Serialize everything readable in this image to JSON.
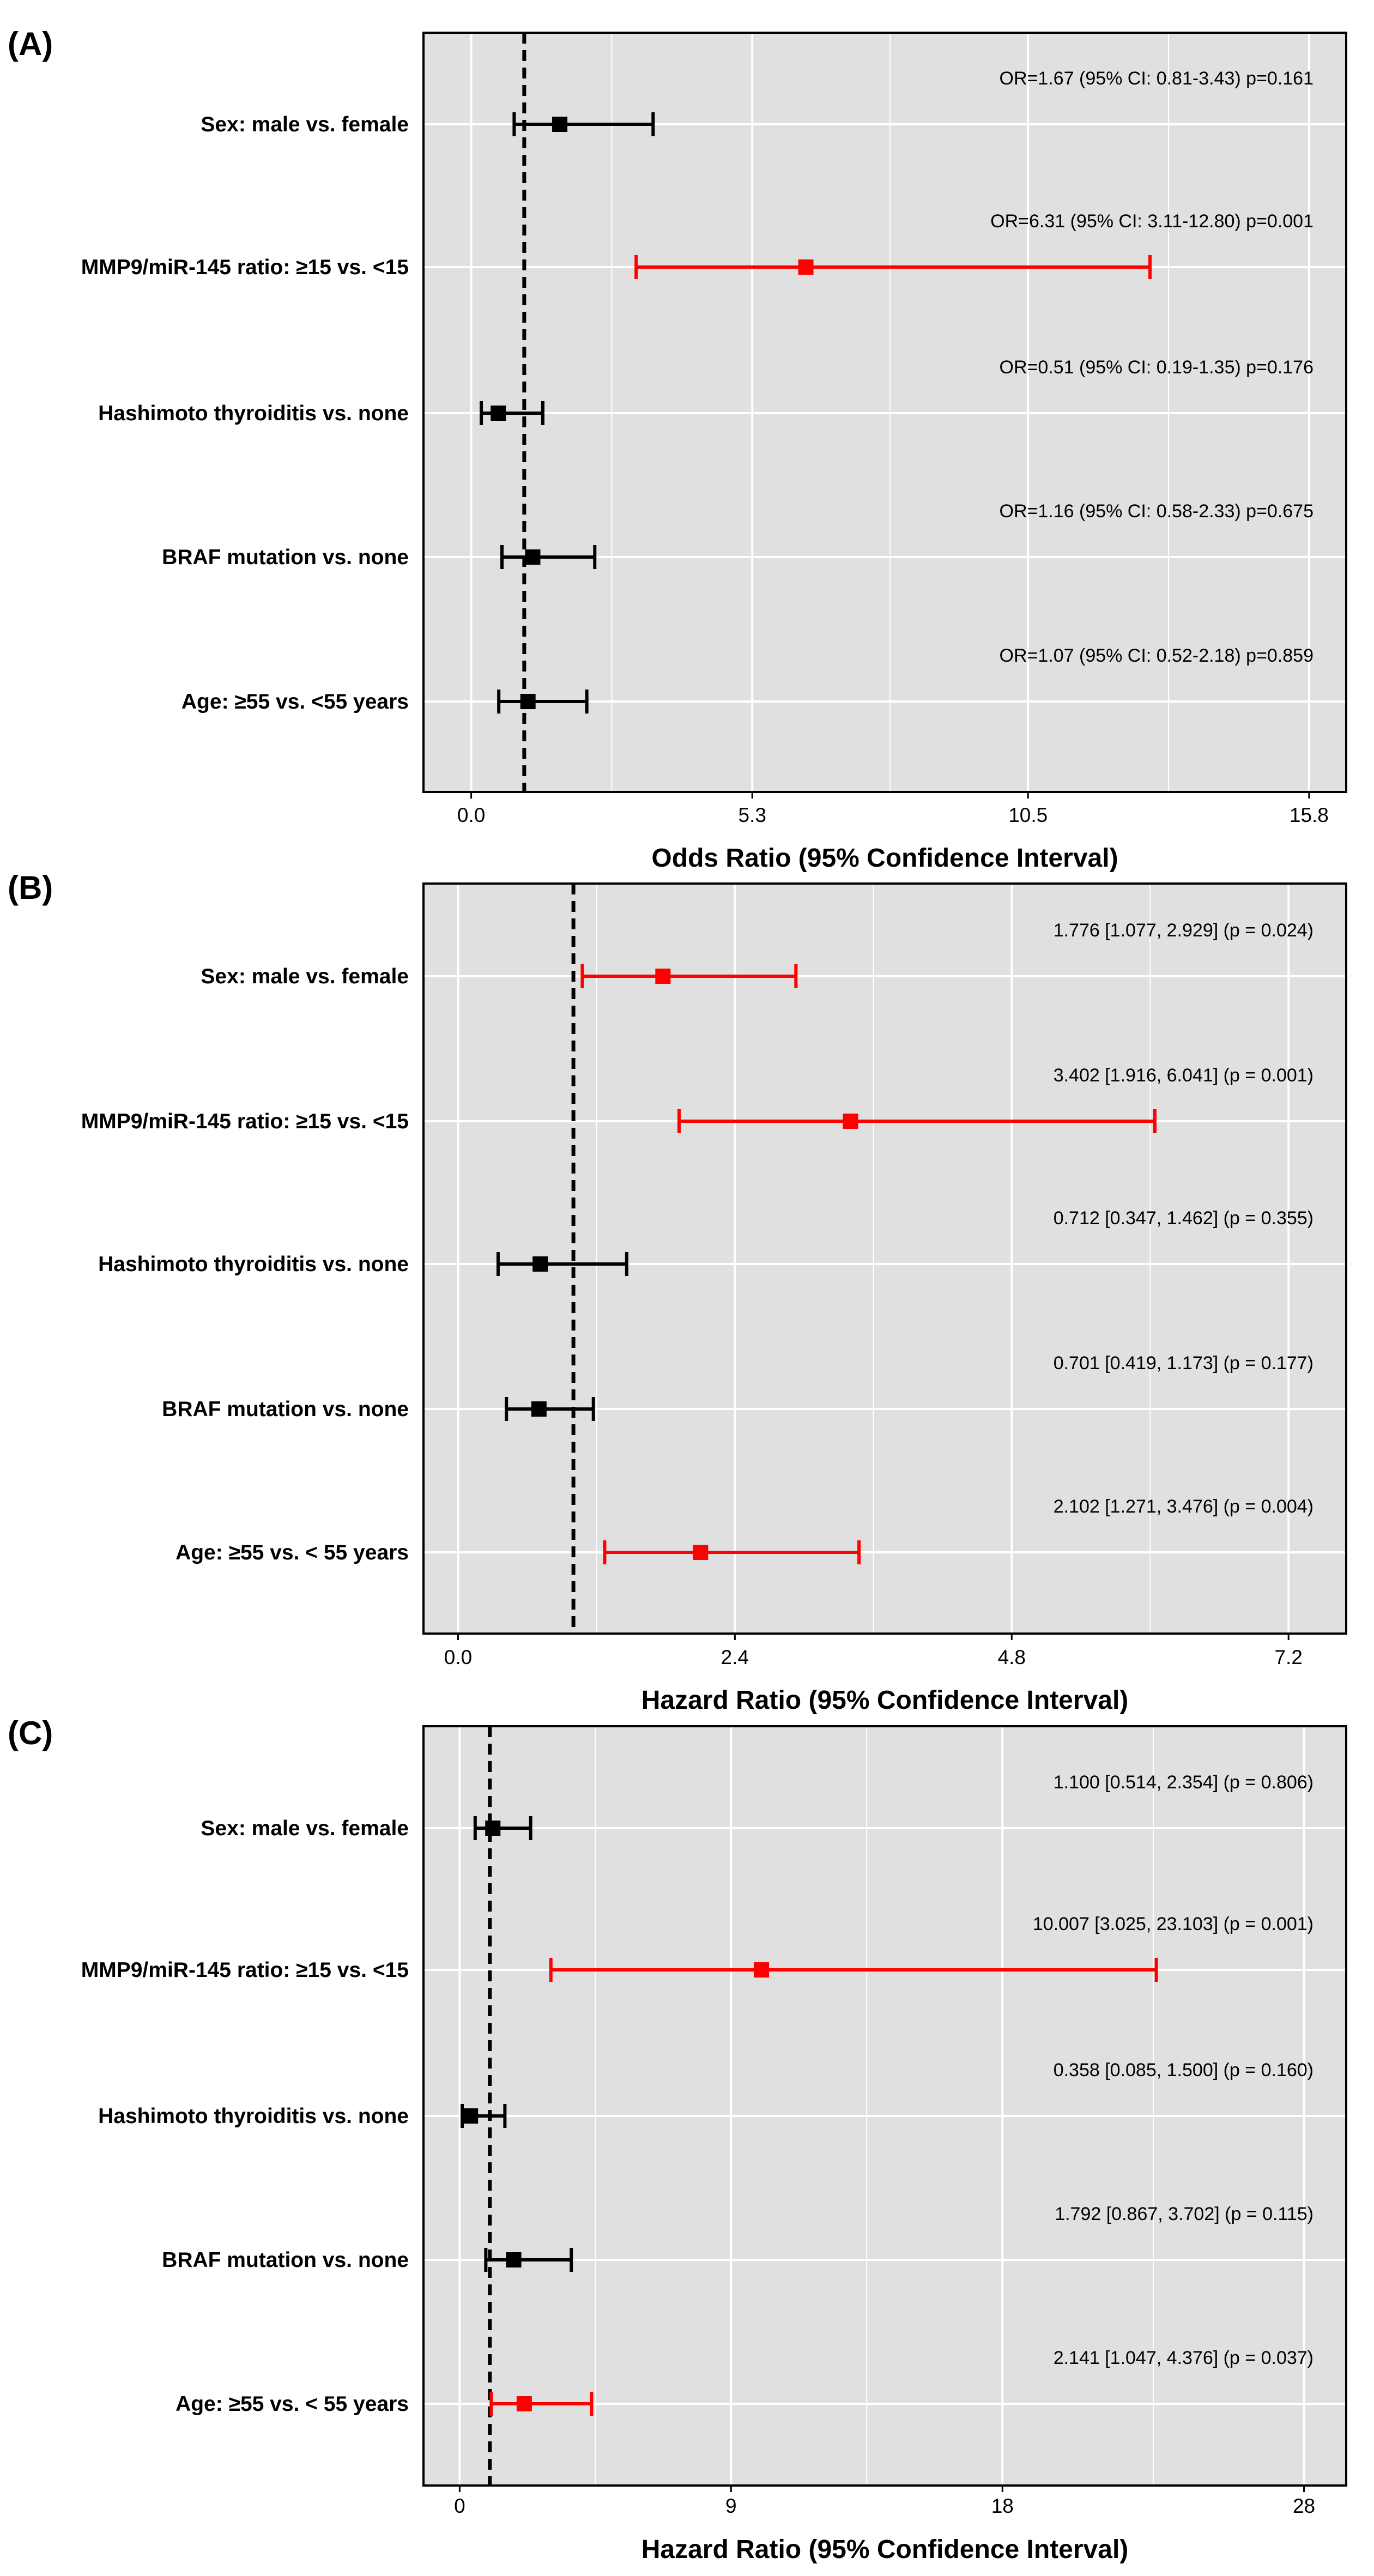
{
  "chart_data": [
    {
      "type": "forest",
      "panel": "(A)",
      "xlabel": "Odds Ratio (95% Confidence Interval)",
      "xlim": [
        -0.9,
        16.5
      ],
      "ticks": [
        0.0,
        5.3,
        10.5,
        15.8
      ],
      "tick_labels": [
        "0.0",
        "5.3",
        "10.5",
        "15.8"
      ],
      "reference_line": 1,
      "colors": {
        "significant": "#ff0000",
        "nonsignificant": "#000000",
        "background": "#e0e0e0",
        "grid": "#ffffff"
      },
      "rows": [
        {
          "label": "Sex: male vs. female",
          "estimate": 1.67,
          "lower": 0.81,
          "upper": 3.43,
          "significant": false,
          "annotation": "OR=1.67 (95% CI: 0.81-3.43) p=0.161"
        },
        {
          "label": "MMP9/miR-145 ratio: ≥15 vs. <15",
          "estimate": 6.31,
          "lower": 3.11,
          "upper": 12.8,
          "significant": true,
          "annotation": "OR=6.31 (95% CI: 3.11-12.80) p=0.001"
        },
        {
          "label": "Hashimoto thyroiditis vs. none",
          "estimate": 0.51,
          "lower": 0.19,
          "upper": 1.35,
          "significant": false,
          "annotation": "OR=0.51 (95% CI: 0.19-1.35) p=0.176"
        },
        {
          "label": "BRAF mutation vs. none",
          "estimate": 1.16,
          "lower": 0.58,
          "upper": 2.33,
          "significant": false,
          "annotation": "OR=1.16 (95% CI: 0.58-2.33) p=0.675"
        },
        {
          "label": "Age: ≥55 vs. <55 years",
          "estimate": 1.07,
          "lower": 0.52,
          "upper": 2.18,
          "significant": false,
          "annotation": "OR=1.07 (95% CI: 0.52-2.18) p=0.859"
        }
      ]
    },
    {
      "type": "forest",
      "panel": "(B)",
      "xlabel": "Hazard Ratio (95% Confidence Interval)",
      "xlim": [
        -0.3,
        7.7
      ],
      "ticks": [
        0.0,
        2.4,
        4.8,
        7.2
      ],
      "tick_labels": [
        "0.0",
        "2.4",
        "4.8",
        "7.2"
      ],
      "reference_line": 1,
      "colors": {
        "significant": "#ff0000",
        "nonsignificant": "#000000",
        "background": "#e0e0e0",
        "grid": "#ffffff"
      },
      "rows": [
        {
          "label": "Sex: male vs. female",
          "estimate": 1.776,
          "lower": 1.077,
          "upper": 2.929,
          "significant": true,
          "annotation": "1.776 [1.077, 2.929] (p = 0.024)"
        },
        {
          "label": "MMP9/miR-145 ratio: ≥15 vs. <15",
          "estimate": 3.402,
          "lower": 1.916,
          "upper": 6.041,
          "significant": true,
          "annotation": "3.402 [1.916, 6.041] (p = 0.001)"
        },
        {
          "label": "Hashimoto thyroiditis vs. none",
          "estimate": 0.712,
          "lower": 0.347,
          "upper": 1.462,
          "significant": false,
          "annotation": "0.712 [0.347, 1.462] (p = 0.355)"
        },
        {
          "label": "BRAF mutation vs. none",
          "estimate": 0.701,
          "lower": 0.419,
          "upper": 1.173,
          "significant": false,
          "annotation": "0.701 [0.419, 1.173] (p = 0.177)"
        },
        {
          "label": "Age: ≥55 vs. < 55 years",
          "estimate": 2.102,
          "lower": 1.271,
          "upper": 3.476,
          "significant": true,
          "annotation": "2.102 [1.271, 3.476] (p = 0.004)"
        }
      ]
    },
    {
      "type": "forest",
      "panel": "(C)",
      "xlabel": "Hazard Ratio (95% Confidence Interval)",
      "xlim": [
        -1.2,
        29.4
      ],
      "ticks": [
        0,
        9,
        18,
        28
      ],
      "tick_labels": [
        "0",
        "9",
        "18",
        "28"
      ],
      "reference_line": 1,
      "colors": {
        "significant": "#ff0000",
        "nonsignificant": "#000000",
        "background": "#e0e0e0",
        "grid": "#ffffff"
      },
      "rows": [
        {
          "label": "Sex: male vs. female",
          "estimate": 1.1,
          "lower": 0.514,
          "upper": 2.354,
          "significant": false,
          "annotation": "1.100 [0.514, 2.354] (p = 0.806)"
        },
        {
          "label": "MMP9/miR-145 ratio: ≥15 vs. <15",
          "estimate": 10.007,
          "lower": 3.025,
          "upper": 23.103,
          "significant": true,
          "annotation": "10.007 [3.025, 23.103] (p = 0.001)"
        },
        {
          "label": "Hashimoto thyroiditis vs. none",
          "estimate": 0.358,
          "lower": 0.085,
          "upper": 1.5,
          "significant": false,
          "annotation": "0.358 [0.085, 1.500] (p = 0.160)"
        },
        {
          "label": "BRAF mutation vs. none",
          "estimate": 1.792,
          "lower": 0.867,
          "upper": 3.702,
          "significant": false,
          "annotation": "1.792 [0.867, 3.702] (p = 0.115)"
        },
        {
          "label": "Age: ≥55 vs. < 55 years",
          "estimate": 2.141,
          "lower": 1.047,
          "upper": 4.376,
          "significant": true,
          "annotation": "2.141 [1.047, 4.376] (p = 0.037)"
        }
      ]
    }
  ]
}
